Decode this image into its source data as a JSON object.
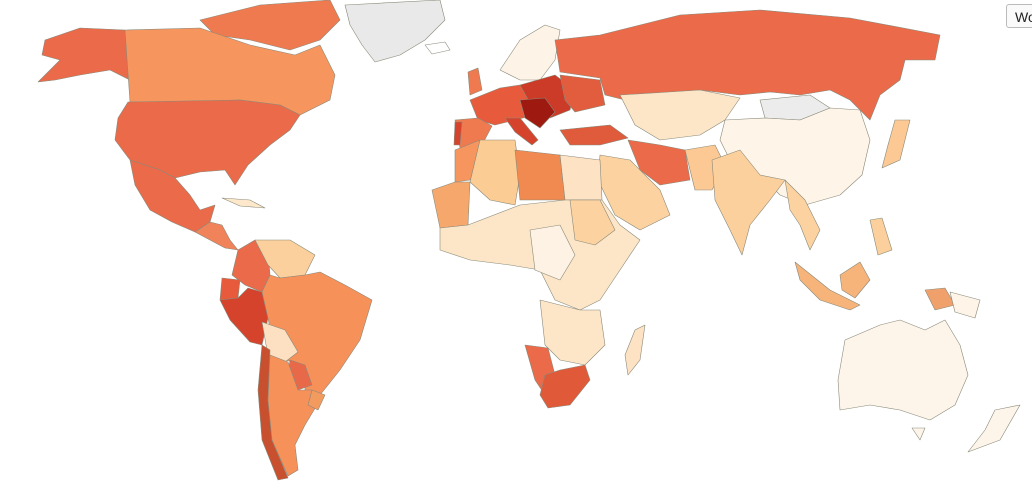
{
  "controls": {
    "region_button": "Wo"
  }
}
